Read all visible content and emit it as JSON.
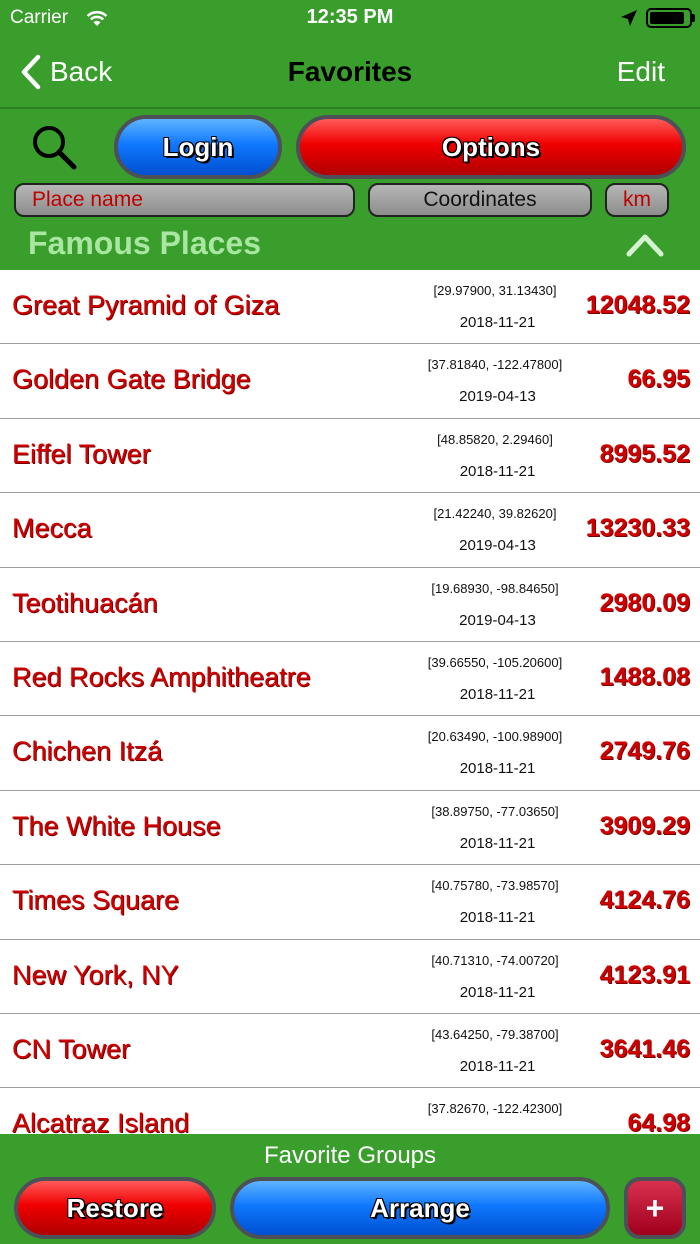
{
  "status_bar": {
    "carrier": "Carrier",
    "time": "12:35 PM",
    "icons": [
      "wifi-icon",
      "location-arrow-icon",
      "battery-icon"
    ]
  },
  "nav": {
    "back_label": "Back",
    "title": "Favorites",
    "edit_label": "Edit"
  },
  "toolbar": {
    "search_icon": "search-icon",
    "login_label": "Login",
    "options_label": "Options",
    "sort_place_label": "Place name",
    "sort_coords_label": "Coordinates",
    "sort_km_label": "km"
  },
  "group": {
    "title": "Famous Places",
    "collapse_icon": "chevron-up-icon"
  },
  "places": [
    {
      "name": "Great Pyramid of Giza",
      "coords": "[29.97900, 31.13430]",
      "date": "2018-11-21",
      "distance": "12048.52"
    },
    {
      "name": "Golden Gate Bridge",
      "coords": "[37.81840, -122.47800]",
      "date": "2019-04-13",
      "distance": "66.95"
    },
    {
      "name": "Eiffel Tower",
      "coords": "[48.85820, 2.29460]",
      "date": "2018-11-21",
      "distance": "8995.52"
    },
    {
      "name": "Mecca",
      "coords": "[21.42240, 39.82620]",
      "date": "2019-04-13",
      "distance": "13230.33"
    },
    {
      "name": "Teotihuacán",
      "coords": "[19.68930, -98.84650]",
      "date": "2019-04-13",
      "distance": "2980.09"
    },
    {
      "name": "Red Rocks Amphitheatre",
      "coords": "[39.66550, -105.20600]",
      "date": "2018-11-21",
      "distance": "1488.08"
    },
    {
      "name": "Chichen Itzá",
      "coords": "[20.63490, -100.98900]",
      "date": "2018-11-21",
      "distance": "2749.76"
    },
    {
      "name": "The White House",
      "coords": "[38.89750, -77.03650]",
      "date": "2018-11-21",
      "distance": "3909.29"
    },
    {
      "name": "Times Square",
      "coords": "[40.75780, -73.98570]",
      "date": "2018-11-21",
      "distance": "4124.76"
    },
    {
      "name": "New York, NY",
      "coords": "[40.71310, -74.00720]",
      "date": "2018-11-21",
      "distance": "4123.91"
    },
    {
      "name": "CN Tower",
      "coords": "[43.64250, -79.38700]",
      "date": "2018-11-21",
      "distance": "3641.46"
    },
    {
      "name": "Alcatraz Island",
      "coords": "[37.82670, -122.42300]",
      "date": "",
      "distance": "64.98"
    }
  ],
  "bottom": {
    "label": "Favorite Groups",
    "restore_label": "Restore",
    "arrange_label": "Arrange",
    "add_label": "+"
  },
  "colors": {
    "bar_green": "#3a9e2c",
    "group_title_green": "#a9e6a1",
    "place_red": "#d10000",
    "button_blue": "#0f78ff",
    "button_red": "#f00000",
    "add_button_crimson": "#c0183a"
  }
}
